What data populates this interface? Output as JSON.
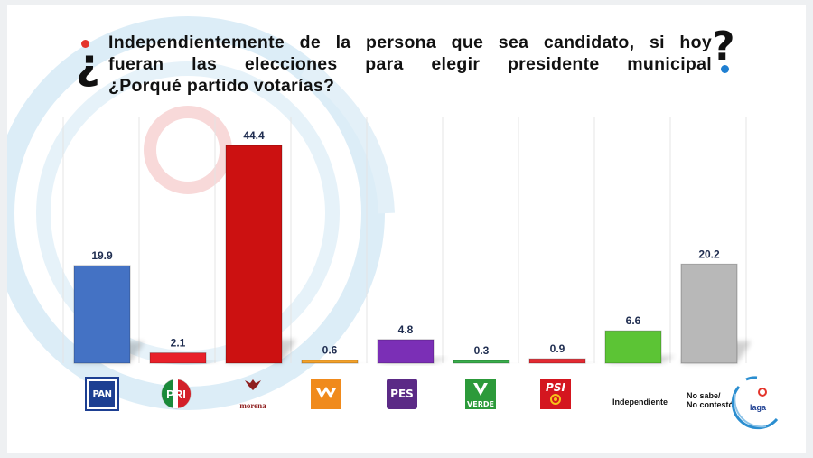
{
  "question": {
    "line1": "Independientemente de la persona que sea candidato, si hoy",
    "line2": "fueran las elecciones para elegir presidente municipal",
    "line3": "¿Porqué partido votarías?",
    "open_mark": "¿",
    "close_mark": "?"
  },
  "chart_data": {
    "type": "bar",
    "title": "Independientemente de la persona que sea candidato, si hoy fueran las elecciones para elegir presidente municipal ¿Porqué partido votarías?",
    "categories": [
      "PAN",
      "PRI",
      "morena",
      "Movimiento Ciudadano",
      "PES",
      "VERDE",
      "PSI",
      "Independiente",
      "No sabe/ No contestó"
    ],
    "values": [
      19.9,
      2.1,
      44.4,
      0.6,
      4.8,
      0.3,
      0.9,
      6.6,
      20.2
    ],
    "colors": [
      "#4472c4",
      "#e8202a",
      "#cc1111",
      "#f3a12a",
      "#7b2fb6",
      "#3aae4c",
      "#e32a32",
      "#5cc435",
      "#b8b8b8"
    ],
    "ylim": [
      0,
      48
    ],
    "xlabel": "",
    "ylabel": "",
    "grid": false,
    "legend": "none"
  },
  "logos": {
    "pan": "PAN",
    "pri": "PRI",
    "morena": "morena",
    "pes": "PES",
    "verde": "VERDE",
    "psi": "PSI",
    "independiente": "Independiente",
    "no_sabe_l1": "No sabe/",
    "no_sabe_l2": "No contestó",
    "brand": "laga"
  },
  "colors": {
    "pan_blue": "#1d3f92",
    "pri_red": "#d32029",
    "pri_green": "#1a8a3a",
    "morena_red": "#8e1e1e",
    "mc_orange": "#f08a1c",
    "pes_purple": "#5b2a86",
    "verde_green": "#2c9a3a",
    "psi_red": "#d4161f",
    "accent_red": "#e4342b",
    "accent_blue": "#1f7fd1",
    "deco_blue": "#d6ecf7",
    "deco_red": "#f7d2d2"
  }
}
